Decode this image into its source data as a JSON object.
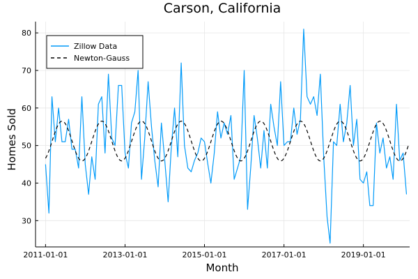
{
  "chart_data": {
    "type": "line",
    "title": "Carson, California",
    "xlabel": "Month",
    "ylabel": "Homes Sold",
    "x_ticks": [
      "2011-01-01",
      "2013-01-01",
      "2015-01-01",
      "2017-01-01",
      "2019-01-01"
    ],
    "y_ticks": [
      "30",
      "40",
      "50",
      "60",
      "70",
      "80"
    ],
    "xlim": [
      "2010-10-01",
      "2020-03-01"
    ],
    "ylim": [
      23,
      83
    ],
    "grid": true,
    "legend_position": "top-left",
    "series": [
      {
        "name": "Zillow Data",
        "style": "solid",
        "color": "#009af9",
        "x_start": "2011-01-01",
        "frequency": "monthly",
        "values": [
          45,
          32,
          63,
          51,
          60,
          51,
          51,
          57,
          49,
          49,
          44,
          63,
          45,
          37,
          47,
          41,
          61,
          63,
          48,
          69,
          52,
          50,
          66,
          66,
          48,
          44,
          56,
          59,
          70,
          41,
          52,
          67,
          55,
          46,
          39,
          56,
          46,
          35,
          49,
          60,
          47,
          72,
          50,
          44,
          43,
          46,
          48,
          52,
          51,
          45,
          40,
          48,
          59,
          52,
          56,
          53,
          58,
          41,
          44,
          47,
          70,
          33,
          44,
          58,
          52,
          44,
          54,
          44,
          61,
          55,
          50,
          67,
          50,
          51,
          51,
          60,
          53,
          57,
          81,
          63,
          61,
          63,
          58,
          69,
          47,
          31,
          24,
          51,
          50,
          61,
          51,
          56,
          66,
          50,
          57,
          41,
          40,
          43,
          34,
          34,
          56,
          48,
          52,
          44,
          47,
          41,
          61,
          46,
          48,
          37
        ]
      },
      {
        "name": "Newton-Gauss",
        "style": "dashed",
        "color": "#000000",
        "x_start": "2011-01-01",
        "frequency": "monthly",
        "model": "seasonal sinusoid",
        "mean": 51.2,
        "amplitude": 5.3,
        "period_months": 12,
        "peak_month_offset": 5
      }
    ]
  }
}
